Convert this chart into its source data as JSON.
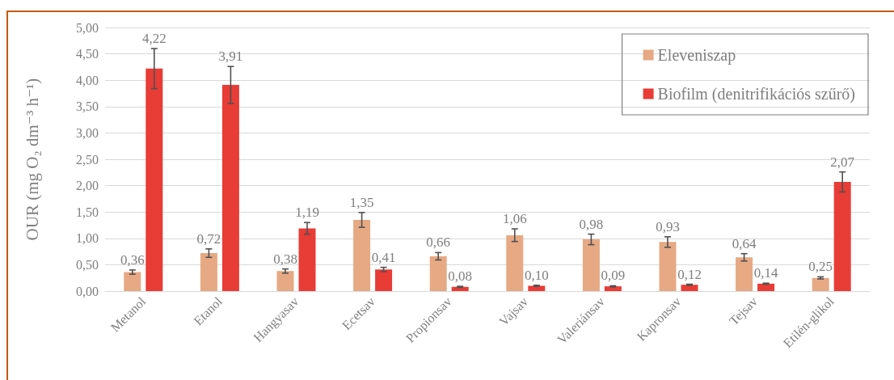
{
  "chart_data": {
    "type": "bar",
    "ylabel": "OUR (mg O₂ dm⁻³ h⁻¹)",
    "categories": [
      "Metanol",
      "Etanol",
      "Hangyasav",
      "Ecetsav",
      "Propionsav",
      "Vajsav",
      "Valeriánsav",
      "Kapronsav",
      "Tejsav",
      "Etilén-glikol"
    ],
    "series": [
      {
        "name": "Eleveniszap",
        "color": "#e6a984",
        "values": [
          0.36,
          0.72,
          0.38,
          1.35,
          0.66,
          1.06,
          0.98,
          0.93,
          0.64,
          0.25
        ],
        "errors": [
          0.04,
          0.08,
          0.04,
          0.14,
          0.07,
          0.12,
          0.1,
          0.1,
          0.07,
          0.02
        ],
        "value_labels": [
          "0,36",
          "0,72",
          "0,38",
          "1,35",
          "0,66",
          "1,06",
          "0,98",
          "0,93",
          "0,64",
          "0,25"
        ]
      },
      {
        "name": "Biofilm (denitrifikációs szűrő)",
        "color": "#e83c36",
        "values": [
          4.22,
          3.91,
          1.19,
          0.41,
          0.08,
          0.1,
          0.09,
          0.12,
          0.14,
          2.07
        ],
        "errors": [
          0.38,
          0.35,
          0.11,
          0.04,
          0.01,
          0.01,
          0.01,
          0.01,
          0.01,
          0.19
        ],
        "value_labels": [
          "4,22",
          "3,91",
          "1,19",
          "0,41",
          "0,08",
          "0,10",
          "0,09",
          "0,12",
          "0,14",
          "2,07"
        ]
      }
    ],
    "ylim": [
      0,
      5
    ],
    "yticks": [
      {
        "value": 0,
        "label": "0,00"
      },
      {
        "value": 0.5,
        "label": "0,50"
      },
      {
        "value": 1,
        "label": "1,00"
      },
      {
        "value": 1.5,
        "label": "1,50"
      },
      {
        "value": 2,
        "label": "2,00"
      },
      {
        "value": 2.5,
        "label": "2,50"
      },
      {
        "value": 3,
        "label": "3,00"
      },
      {
        "value": 3.5,
        "label": "3,50"
      },
      {
        "value": 4,
        "label": "4,00"
      },
      {
        "value": 4.5,
        "label": "4,50"
      },
      {
        "value": 5,
        "label": "5,00"
      }
    ],
    "grid": "y",
    "legend": "top right"
  }
}
